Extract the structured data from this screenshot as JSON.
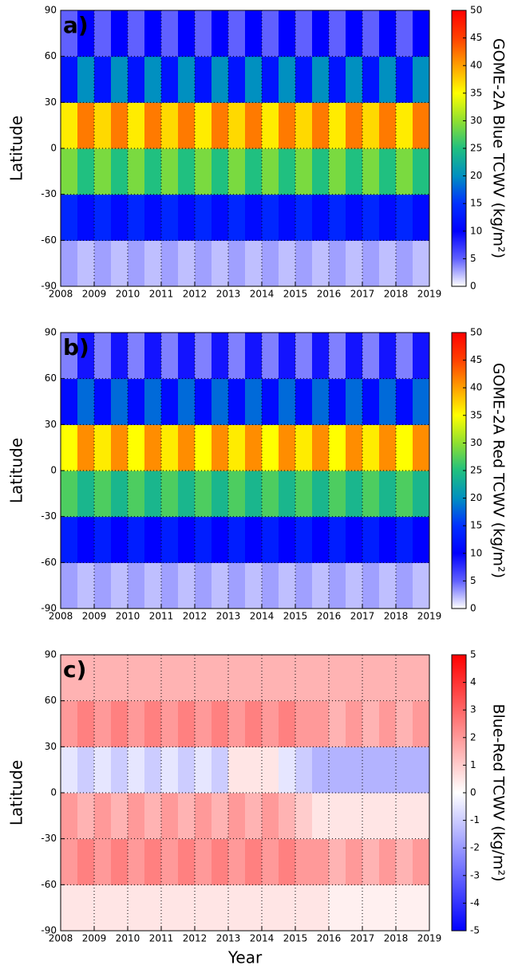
{
  "chart_data": [
    {
      "type": "heatmap",
      "annotation": "a)",
      "ylabel": "Latitude",
      "colorbar_label": "GOME-2A Blue TCWV (kg/m²)",
      "xlim": [
        2008,
        2019
      ],
      "xticks": [
        2008,
        2009,
        2010,
        2011,
        2012,
        2013,
        2014,
        2015,
        2016,
        2017,
        2018,
        2019
      ],
      "ylim": [
        -90,
        90
      ],
      "yticks": [
        -90,
        -60,
        -30,
        0,
        30,
        60,
        90
      ],
      "grid": true,
      "xbins": [
        2008,
        2008.5,
        2009,
        2009.5,
        2010,
        2010.5,
        2011,
        2011.5,
        2012,
        2012.5,
        2013,
        2013.5,
        2014,
        2014.5,
        2015,
        2015.5,
        2016,
        2016.5,
        2017,
        2017.5,
        2018,
        2018.5,
        2019
      ],
      "ybins": [
        -90,
        -60,
        -30,
        0,
        30,
        60,
        90
      ],
      "values": [
        [
          3,
          2,
          3,
          2,
          3,
          2,
          3,
          2,
          3,
          2,
          3,
          2,
          3,
          2,
          3,
          2,
          3,
          2,
          3,
          2,
          3,
          2
        ],
        [
          14,
          11,
          14,
          11,
          14,
          11,
          14,
          11,
          14,
          11,
          14,
          11,
          14,
          11,
          14,
          11,
          14,
          11,
          14,
          11,
          14,
          11
        ],
        [
          29,
          25,
          29,
          25,
          29,
          25,
          29,
          25,
          29,
          25,
          29,
          25,
          29,
          25,
          29,
          25,
          29,
          25,
          29,
          25,
          29,
          25
        ],
        [
          36,
          42,
          37,
          42,
          36,
          42,
          37,
          42,
          36,
          42,
          37,
          42,
          36,
          42,
          37,
          42,
          36,
          42,
          37,
          42,
          36,
          42
        ],
        [
          12,
          20,
          12,
          20,
          12,
          20,
          12,
          20,
          12,
          20,
          12,
          20,
          12,
          20,
          12,
          20,
          12,
          20,
          12,
          20,
          12,
          20
        ],
        [
          5,
          10,
          5,
          10,
          5,
          10,
          5,
          10,
          5,
          10,
          5,
          10,
          5,
          10,
          5,
          10,
          5,
          10,
          5,
          10,
          5,
          10
        ]
      ],
      "clim": [
        0,
        50
      ],
      "cticks": [
        0,
        5,
        10,
        15,
        20,
        25,
        30,
        35,
        40,
        45,
        50
      ],
      "colormap": [
        "#ffffff",
        "#6060ff",
        "#0000ff",
        "#0030ff",
        "#0090c0",
        "#20c080",
        "#90e030",
        "#ffff00",
        "#ffa000",
        "#ff4000",
        "#ff0000"
      ]
    },
    {
      "type": "heatmap",
      "annotation": "b)",
      "ylabel": "Latitude",
      "colorbar_label": "GOME-2A Red TCWV (kg/m²)",
      "xlim": [
        2008,
        2019
      ],
      "xticks": [
        2008,
        2009,
        2010,
        2011,
        2012,
        2013,
        2014,
        2015,
        2016,
        2017,
        2018,
        2019
      ],
      "ylim": [
        -90,
        90
      ],
      "yticks": [
        -90,
        -60,
        -30,
        0,
        30,
        60,
        90
      ],
      "grid": true,
      "xbins": [
        2008,
        2008.5,
        2009,
        2009.5,
        2010,
        2010.5,
        2011,
        2011.5,
        2012,
        2012.5,
        2013,
        2013.5,
        2014,
        2014.5,
        2015,
        2015.5,
        2016,
        2016.5,
        2017,
        2017.5,
        2018,
        2018.5,
        2019
      ],
      "ybins": [
        -90,
        -60,
        -30,
        0,
        30,
        60,
        90
      ],
      "values": [
        [
          3,
          2,
          3,
          2,
          3,
          2,
          3,
          2,
          3,
          2,
          3,
          2,
          3,
          2,
          3,
          2,
          3,
          2,
          3,
          2,
          3,
          2
        ],
        [
          13,
          10,
          13,
          10,
          13,
          10,
          13,
          10,
          13,
          10,
          13,
          10,
          13,
          10,
          13,
          10,
          13,
          10,
          13,
          10,
          13,
          10
        ],
        [
          27,
          24,
          27,
          24,
          27,
          24,
          27,
          24,
          27,
          24,
          27,
          24,
          27,
          24,
          27,
          24,
          27,
          24,
          27,
          24,
          27,
          24
        ],
        [
          35,
          41,
          36,
          41,
          35,
          41,
          36,
          41,
          35,
          41,
          36,
          41,
          35,
          41,
          36,
          41,
          35,
          41,
          36,
          41,
          35,
          41
        ],
        [
          11,
          18,
          11,
          18,
          11,
          18,
          11,
          18,
          11,
          18,
          11,
          18,
          11,
          18,
          11,
          18,
          11,
          18,
          11,
          18,
          11,
          18
        ],
        [
          4,
          9,
          4,
          9,
          4,
          9,
          4,
          9,
          4,
          9,
          4,
          9,
          4,
          9,
          4,
          9,
          4,
          9,
          4,
          9,
          4,
          9
        ]
      ],
      "clim": [
        0,
        50
      ],
      "cticks": [
        0,
        5,
        10,
        15,
        20,
        25,
        30,
        35,
        40,
        45,
        50
      ],
      "colormap": [
        "#ffffff",
        "#6060ff",
        "#0000ff",
        "#0030ff",
        "#0090c0",
        "#20c080",
        "#90e030",
        "#ffff00",
        "#ffa000",
        "#ff4000",
        "#ff0000"
      ]
    },
    {
      "type": "heatmap",
      "annotation": "c)",
      "ylabel": "Latitude",
      "xlabel": "Year",
      "colorbar_label": "Blue-Red TCWV (kg/m²)",
      "xlim": [
        2008,
        2019
      ],
      "xticks": [
        2008,
        2009,
        2010,
        2011,
        2012,
        2013,
        2014,
        2015,
        2016,
        2017,
        2018,
        2019
      ],
      "ylim": [
        -90,
        90
      ],
      "yticks": [
        -90,
        -60,
        -30,
        0,
        30,
        60,
        90
      ],
      "grid": true,
      "xbins": [
        2008,
        2008.5,
        2009,
        2009.5,
        2010,
        2010.5,
        2011,
        2011.5,
        2012,
        2012.5,
        2013,
        2013.5,
        2014,
        2014.5,
        2015,
        2015.5,
        2016,
        2016.5,
        2017,
        2017.5,
        2018,
        2018.5,
        2019
      ],
      "ybins": [
        -90,
        -60,
        -30,
        0,
        30,
        60,
        90
      ],
      "values": [
        [
          0.5,
          0.5,
          0.5,
          0.5,
          0.5,
          0.5,
          0.5,
          0.5,
          0.5,
          0.5,
          0.5,
          0.5,
          0.5,
          0.5,
          0.5,
          0.5,
          0.3,
          0.3,
          0.3,
          0.3,
          0.3,
          0.3
        ],
        [
          2,
          2.5,
          2,
          2.5,
          2,
          2.5,
          2,
          2.5,
          2,
          2.5,
          2,
          2.5,
          2,
          2.5,
          2,
          2,
          1.5,
          2,
          1.5,
          2,
          1.5,
          2
        ],
        [
          2,
          1.5,
          2,
          1.5,
          2,
          1.5,
          2,
          1.5,
          2,
          1.5,
          2,
          1.5,
          2,
          1.5,
          1,
          0.5,
          0.5,
          0.5,
          0.5,
          0.5,
          0.5,
          0.5
        ],
        [
          -0.5,
          -1,
          -0.5,
          -1,
          -0.5,
          -1,
          -0.5,
          -1,
          -0.5,
          -1,
          0.5,
          0.5,
          0.5,
          -0.5,
          -1,
          -1.5,
          -1.5,
          -1.5,
          -1.5,
          -1.5,
          -1.5,
          -1.5
        ],
        [
          2,
          2.5,
          2,
          2.5,
          2,
          2.5,
          2,
          2.5,
          2,
          2.5,
          2,
          2.5,
          2,
          2.5,
          2,
          2,
          1.5,
          2,
          1.5,
          2,
          1.5,
          2
        ],
        [
          1.5,
          1.5,
          1.5,
          1.5,
          1.5,
          1.5,
          1.5,
          1.5,
          1.5,
          1.5,
          1.5,
          1.5,
          1.5,
          1.5,
          1.5,
          1.5,
          1.5,
          1.5,
          1.5,
          1.5,
          1.5,
          1.5
        ]
      ],
      "clim": [
        -5,
        5
      ],
      "cticks": [
        -5,
        -4,
        -3,
        -2,
        -1,
        0,
        1,
        2,
        3,
        4,
        5
      ],
      "colormap": [
        "#0000ff",
        "#ffffff",
        "#ff0000"
      ]
    }
  ]
}
